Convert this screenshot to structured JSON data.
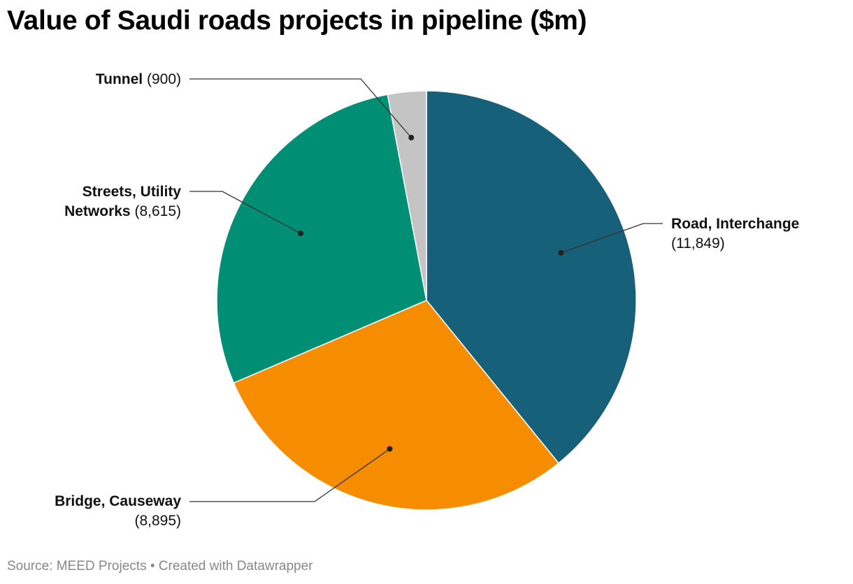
{
  "header": {
    "title": "Value of Saudi roads projects in pipeline ($m)"
  },
  "footer": {
    "source": "Source: MEED Projects • Created with Datawrapper"
  },
  "chart_data": {
    "type": "pie",
    "title": "Value of Saudi roads projects in pipeline ($m)",
    "slices": [
      {
        "label": "Road, Interchange",
        "value": 11849,
        "value_label": "(11,849)",
        "color": "#176079"
      },
      {
        "label": "Bridge, Causeway",
        "value": 8895,
        "value_label": "(8,895)",
        "color": "#f68c00"
      },
      {
        "label": "Streets, Utility Networks",
        "label_lines": [
          "Streets, Utility",
          "Networks"
        ],
        "value": 8615,
        "value_label": "(8,615)",
        "color": "#008e74"
      },
      {
        "label": "Tunnel",
        "value": 900,
        "value_label": "(900)",
        "color": "#c4c4c4"
      }
    ]
  }
}
